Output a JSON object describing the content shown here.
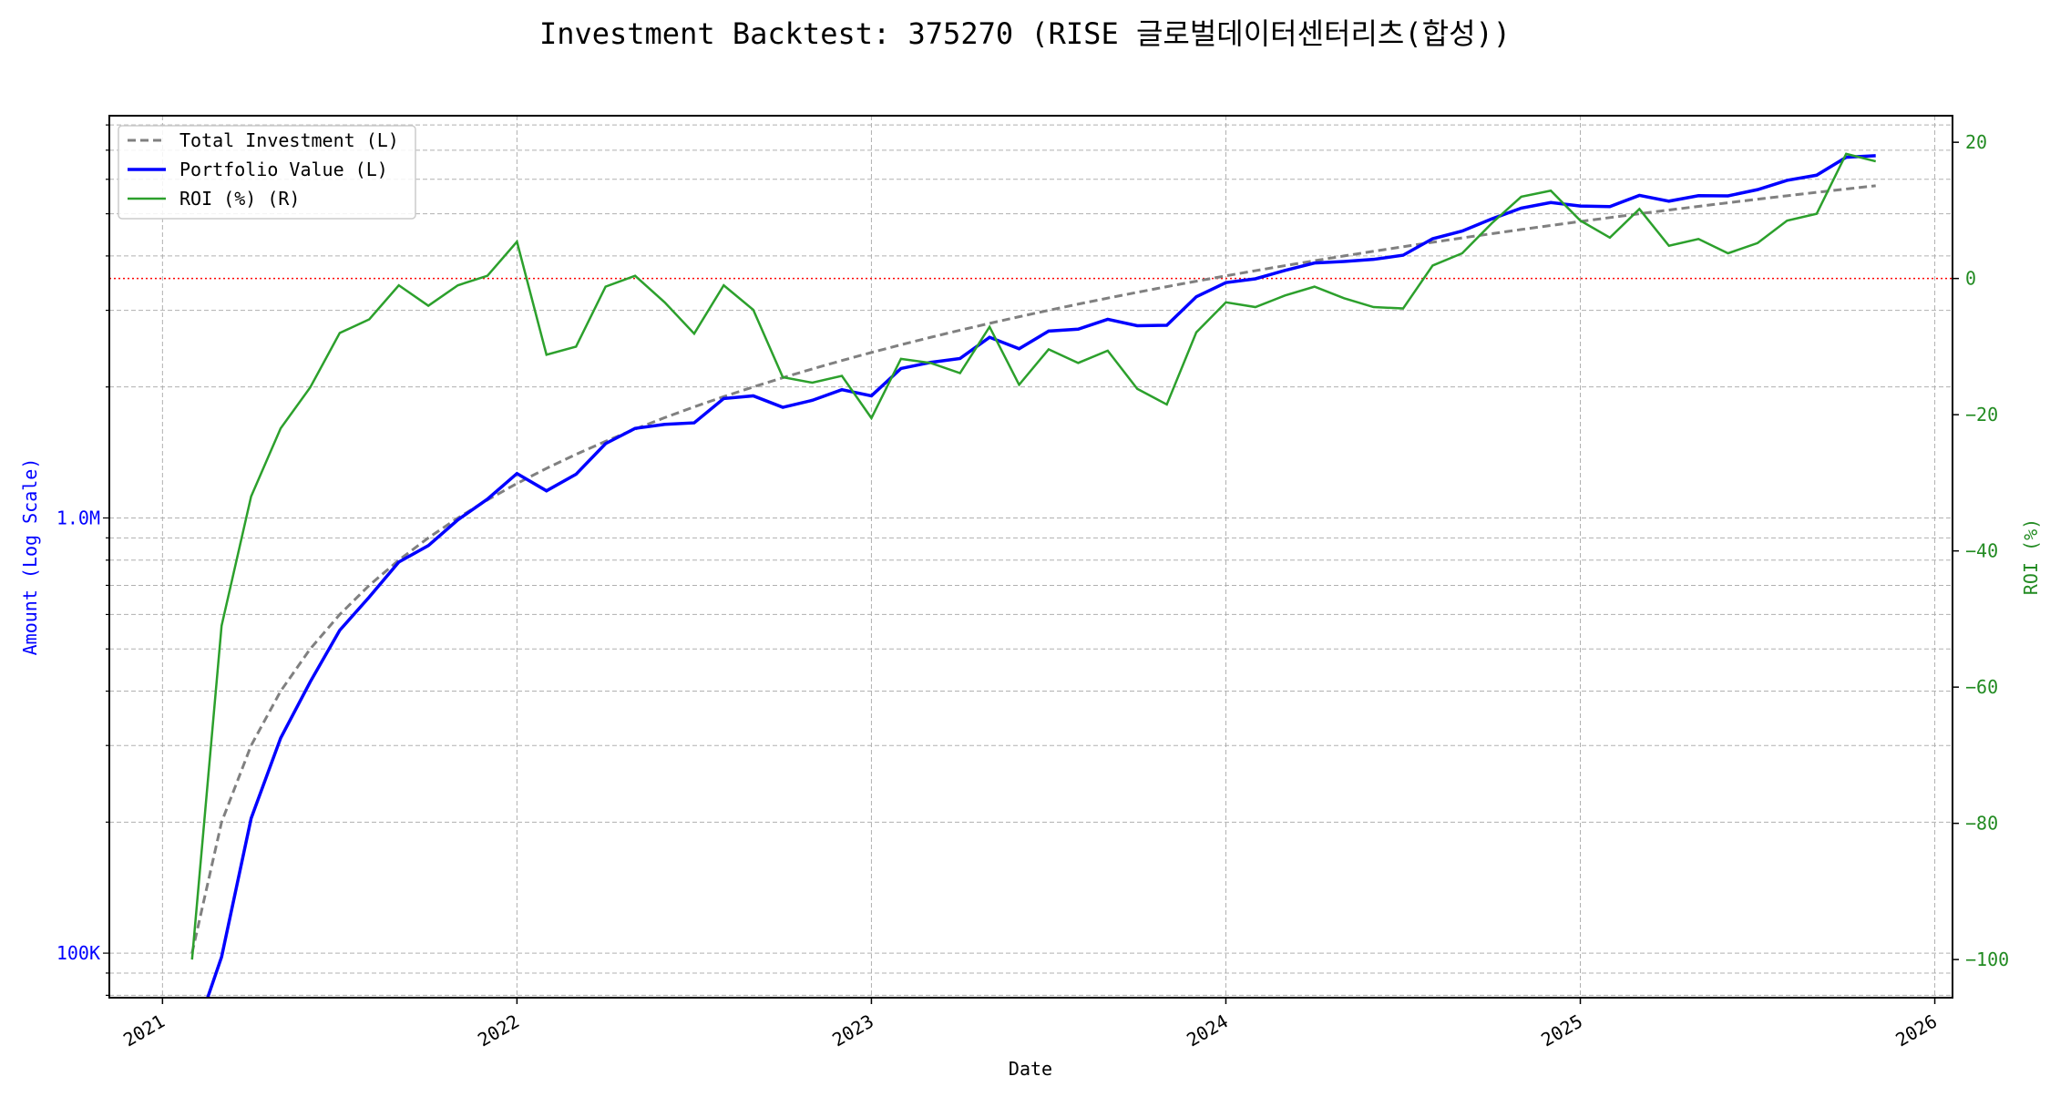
{
  "chart_data": {
    "type": "line",
    "title": "Investment Backtest: 375270 (RISE 글로벌데이터센터리츠(합성))",
    "xlabel": "Date",
    "ylabel_left": "Amount (Log Scale)",
    "ylabel_right": "ROI (%)",
    "x_tick_labels": [
      "2021",
      "2022",
      "2023",
      "2024",
      "2025",
      "2026"
    ],
    "xlim": [
      2020.85,
      2026.05
    ],
    "ylim_left": [
      79000,
      8400000
    ],
    "yscale_left": "log",
    "y_left_ticks": [
      {
        "value": 100000,
        "label": "100K"
      },
      {
        "value": 1000000,
        "label": "1.0M"
      }
    ],
    "ylim_right": [
      -105.6,
      23.9
    ],
    "y_right_ticks": [
      20,
      0,
      -20,
      -40,
      -60,
      -80,
      -100
    ],
    "reference_line": {
      "axis": "right",
      "value": 0,
      "color": "#ff0000",
      "style": "dotted"
    },
    "grid": true,
    "legend_position": "upper-left",
    "legend": [
      "Total Investment (L)",
      "Portfolio Value (L)",
      "ROI (%) (R)"
    ],
    "colors": {
      "investment": "#808080",
      "portfolio": "#0000ff",
      "roi": "#2ca02c",
      "left_axis": "#0000ff",
      "right_axis": "#228b22"
    },
    "start": "2021-02",
    "monthly_contribution": 100000,
    "x": [
      "2021-02",
      "2021-03",
      "2021-04",
      "2021-05",
      "2021-06",
      "2021-07",
      "2021-08",
      "2021-09",
      "2021-10",
      "2021-11",
      "2021-12",
      "2022-01",
      "2022-02",
      "2022-03",
      "2022-04",
      "2022-05",
      "2022-06",
      "2022-07",
      "2022-08",
      "2022-09",
      "2022-10",
      "2022-11",
      "2022-12",
      "2023-01",
      "2023-02",
      "2023-03",
      "2023-04",
      "2023-05",
      "2023-06",
      "2023-07",
      "2023-08",
      "2023-09",
      "2023-10",
      "2023-11",
      "2023-12",
      "2024-01",
      "2024-02",
      "2024-03",
      "2024-04",
      "2024-05",
      "2024-06",
      "2024-07",
      "2024-08",
      "2024-09",
      "2024-10",
      "2024-11",
      "2024-12",
      "2025-01",
      "2025-02",
      "2025-03",
      "2025-04",
      "2025-05",
      "2025-06",
      "2025-07",
      "2025-08",
      "2025-09",
      "2025-10",
      "2025-11"
    ],
    "series": [
      {
        "name": "ROI (%) (R)",
        "axis": "right",
        "values": [
          -100,
          -51,
          -32,
          -22,
          -16,
          -8,
          -6,
          -1,
          -4,
          -1,
          0.4,
          5.4,
          -11.2,
          -10,
          -1.2,
          0.4,
          -3.5,
          -8.1,
          -1,
          -4.6,
          -14.5,
          -15.3,
          -14.3,
          -20.5,
          -11.8,
          -12.4,
          -13.9,
          -7.1,
          -15.6,
          -10.4,
          -12.4,
          -10.6,
          -16.2,
          -18.5,
          -7.9,
          -3.5,
          -4.2,
          -2.5,
          -1.2,
          -2.9,
          -4.2,
          -4.4,
          1.9,
          3.7,
          8.1,
          12,
          12.9,
          8.5,
          6,
          10.2,
          4.8,
          5.8,
          3.7,
          5.2,
          8.5,
          9.5,
          18.3,
          17.2
        ]
      }
    ]
  }
}
